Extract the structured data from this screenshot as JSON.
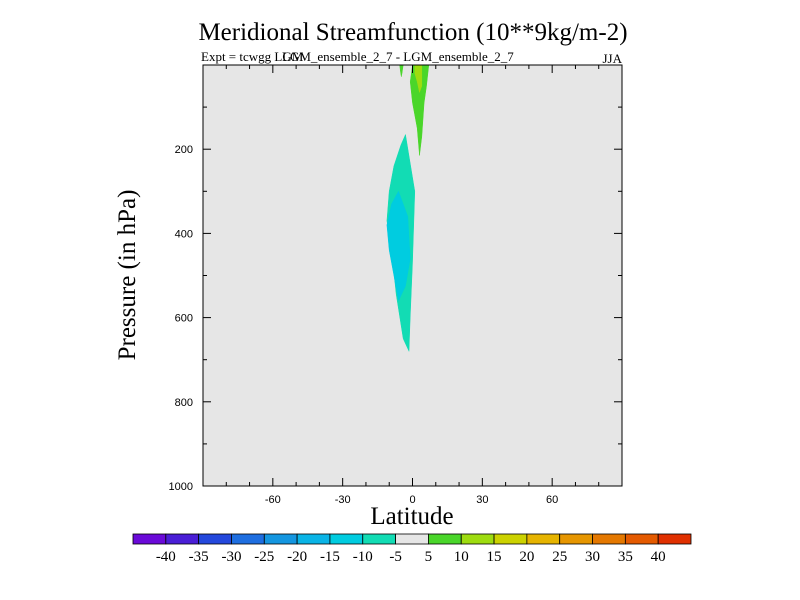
{
  "chart_data": {
    "type": "contour",
    "title": "Meridional Streamfunction (10**9kg/m-2)",
    "subtitle_left": "Expt = tcwgg LGM",
    "subtitle_center": "LGM_ensemble_2_7 - LGM_ensemble_2_7",
    "season": "JJA",
    "xlabel": "Latitude",
    "ylabel": "Pressure (in hPa)",
    "xlim": [
      -90,
      90
    ],
    "ylim": [
      1000,
      0
    ],
    "x_ticks": [
      -60,
      -30,
      0,
      30,
      60
    ],
    "x_tick_labels": [
      "-60",
      "-30",
      "0",
      "30",
      "60"
    ],
    "y_ticks": [
      200,
      400,
      600,
      800,
      1000
    ],
    "y_tick_labels": [
      "200",
      "400",
      "600",
      "800",
      "1000"
    ],
    "background_color": "#e6e6e6",
    "colorbar": {
      "colors": [
        "#6a0ad8",
        "#4a1ed6",
        "#2448dc",
        "#1e6ee0",
        "#1496e0",
        "#0ab4e6",
        "#00cce0",
        "#12dcb4",
        "#e6e6e6",
        "#4ad62a",
        "#9edc10",
        "#ccd200",
        "#e6b400",
        "#e69600",
        "#e47800",
        "#e45a00",
        "#e03000"
      ],
      "labels": [
        "-40",
        "-35",
        "-30",
        "-25",
        "-20",
        "-15",
        "-10",
        "-5",
        "5",
        "10",
        "15",
        "20",
        "25",
        "30",
        "35",
        "40"
      ]
    },
    "regions": [
      {
        "name": "negative-cell-outer",
        "level": -10,
        "color": "#12dcb4",
        "polygon": [
          [
            -3,
            165
          ],
          [
            1,
            300
          ],
          [
            0,
            470
          ],
          [
            -1,
            600
          ],
          [
            -1.5,
            680
          ],
          [
            -4,
            650
          ],
          [
            -7,
            545
          ],
          [
            -9,
            440
          ],
          [
            -11,
            370
          ],
          [
            -10,
            300
          ],
          [
            -8,
            240
          ],
          [
            -5,
            190
          ]
        ]
      },
      {
        "name": "negative-cell-inner",
        "level": -15,
        "color": "#00cce0",
        "polygon": [
          [
            -6,
            300
          ],
          [
            -2,
            360
          ],
          [
            -1,
            460
          ],
          [
            -3,
            525
          ],
          [
            -6,
            560
          ],
          [
            -8,
            500
          ],
          [
            -10,
            440
          ],
          [
            -11,
            380
          ],
          [
            -9,
            330
          ]
        ]
      },
      {
        "name": "positive-cell-outer",
        "level": 10,
        "color": "#4ad62a",
        "polygon": [
          [
            0,
            0
          ],
          [
            7,
            0
          ],
          [
            6,
            50
          ],
          [
            5,
            90
          ],
          [
            4,
            170
          ],
          [
            3,
            215
          ],
          [
            2,
            150
          ],
          [
            0,
            90
          ],
          [
            -1,
            40
          ]
        ]
      },
      {
        "name": "positive-cell-inner",
        "level": 15,
        "color": "#9edc10",
        "polygon": [
          [
            1,
            0
          ],
          [
            4,
            0
          ],
          [
            4,
            30
          ],
          [
            4,
            50
          ],
          [
            3,
            65
          ],
          [
            2,
            40
          ],
          [
            1,
            20
          ]
        ]
      },
      {
        "name": "positive-small-left",
        "level": 10,
        "color": "#4ad62a",
        "polygon": [
          [
            -5.5,
            0
          ],
          [
            -4,
            0
          ],
          [
            -4.5,
            20
          ],
          [
            -4.8,
            28
          ],
          [
            -5.2,
            15
          ]
        ]
      }
    ]
  }
}
